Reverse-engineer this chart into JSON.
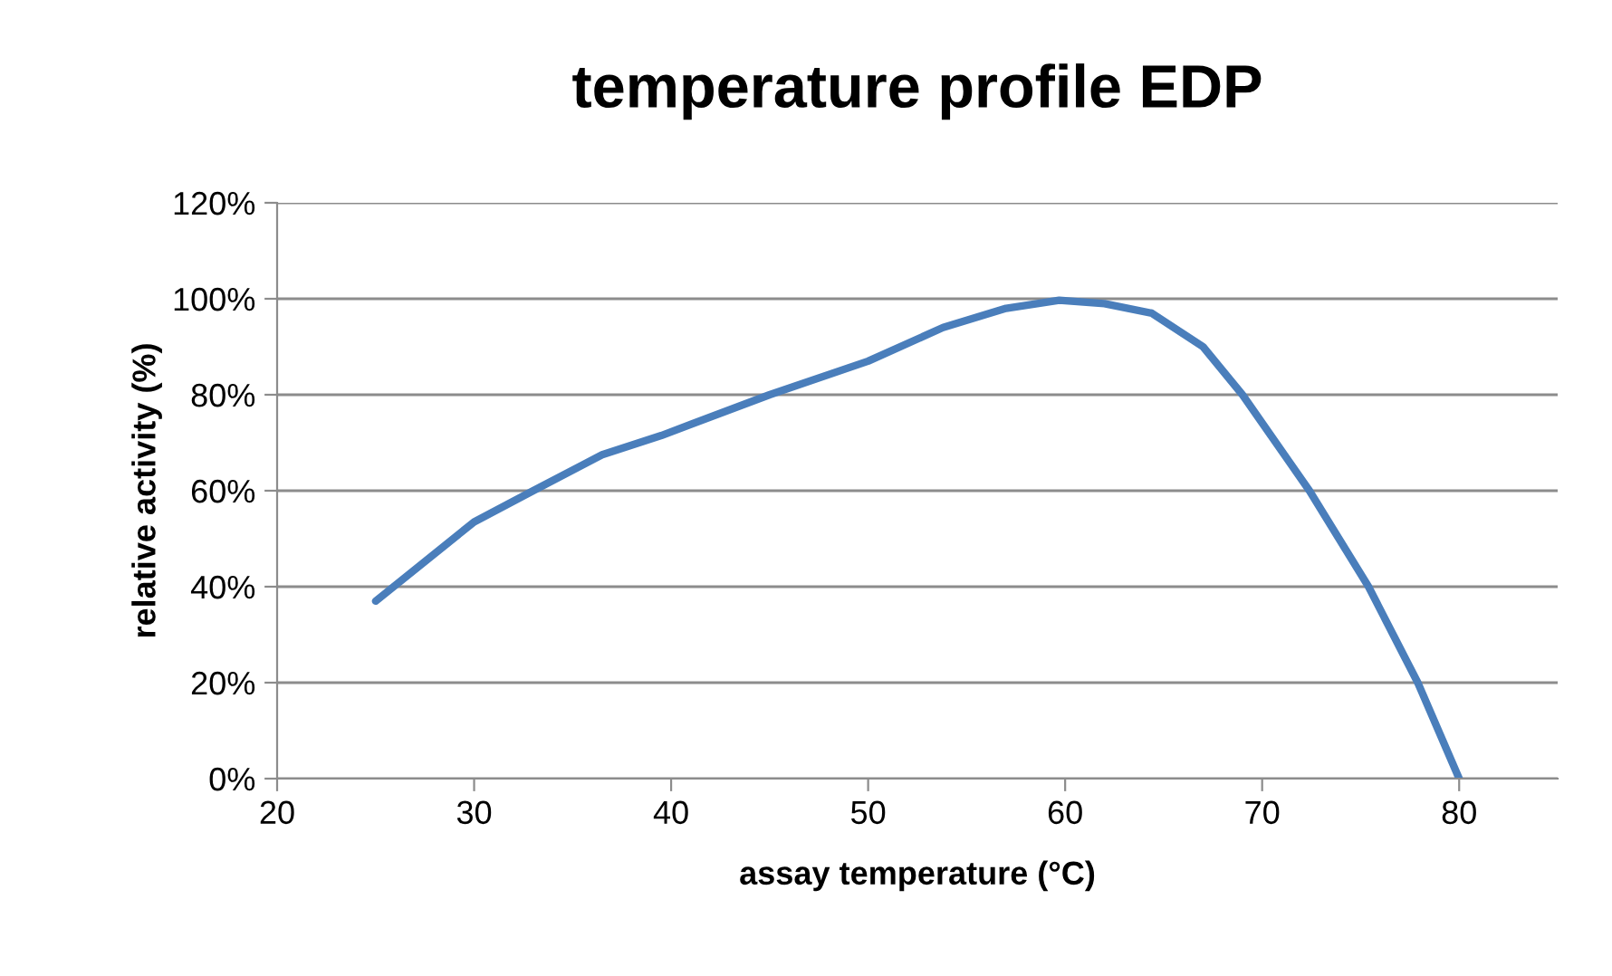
{
  "chart_data": {
    "type": "line",
    "title": "temperature profile EDP",
    "xlabel": "assay temperature (°C)",
    "ylabel": "relative activity (%)",
    "x": [
      25,
      30,
      33,
      36.5,
      39.5,
      45,
      50,
      53.8,
      57,
      59.7,
      62,
      64.4,
      67,
      69,
      72.4,
      75.4,
      77.9,
      80
    ],
    "series": [
      {
        "color": "#4a7ebb",
        "values": [
          37,
          53.5,
          60,
          67.5,
          71.5,
          80,
          87,
          94,
          98,
          99.7,
          99,
          97,
          90,
          80,
          60,
          40,
          20,
          0
        ]
      }
    ],
    "xlim": [
      20,
      85
    ],
    "xticks": [
      20,
      30,
      40,
      50,
      60,
      70,
      80
    ],
    "ylim": [
      0,
      120
    ],
    "yticks": [
      {
        "value": 0,
        "label": "0%"
      },
      {
        "value": 20,
        "label": "20%"
      },
      {
        "value": 40,
        "label": "40%"
      },
      {
        "value": 60,
        "label": "60%"
      },
      {
        "value": 80,
        "label": "80%"
      },
      {
        "value": 100,
        "label": "100%"
      },
      {
        "value": 120,
        "label": "120%"
      }
    ],
    "grid": "y",
    "marker": "none",
    "line_style": "solid",
    "legend": false
  }
}
